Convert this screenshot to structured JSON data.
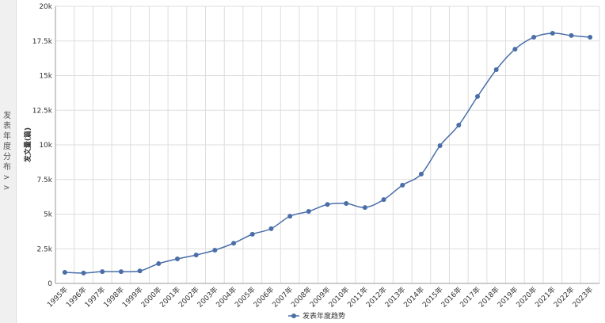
{
  "sidebar": {
    "label": "发表年度分布",
    "toggle": ">>"
  },
  "chart_data": {
    "type": "line",
    "y_label": "发文量(篇)",
    "categories": [
      "1995年",
      "1996年",
      "1997年",
      "1998年",
      "1999年",
      "2000年",
      "2001年",
      "2002年",
      "2003年",
      "2004年",
      "2005年",
      "2006年",
      "2007年",
      "2008年",
      "2009年",
      "2010年",
      "2011年",
      "2012年",
      "2013年",
      "2014年",
      "2015年",
      "2016年",
      "2017年",
      "2018年",
      "2019年",
      "2020年",
      "2021年",
      "2022年",
      "2023年"
    ],
    "series": [
      {
        "name": "发表年度趋势",
        "color": "#4a6ea8",
        "values": [
          800,
          750,
          850,
          850,
          900,
          1430,
          1770,
          2050,
          2400,
          2900,
          3550,
          3950,
          4850,
          5200,
          5700,
          5770,
          5480,
          6050,
          7090,
          7890,
          9940,
          11430,
          13490,
          15430,
          16910,
          17770,
          18060,
          17890,
          17770
        ]
      }
    ],
    "ylim": [
      0,
      20000
    ],
    "yticks": [
      0,
      {
        "value": 2500,
        "label": "2.5k"
      },
      {
        "value": 5000,
        "label": "5k"
      },
      {
        "value": 7500,
        "label": "7.5k"
      },
      {
        "value": 10000,
        "label": "10k"
      },
      {
        "value": 12500,
        "label": "12.5k"
      },
      {
        "value": 15000,
        "label": "15k"
      },
      {
        "value": 17500,
        "label": "17.5k"
      },
      {
        "value": 20000,
        "label": "20k"
      }
    ],
    "grid": true
  }
}
